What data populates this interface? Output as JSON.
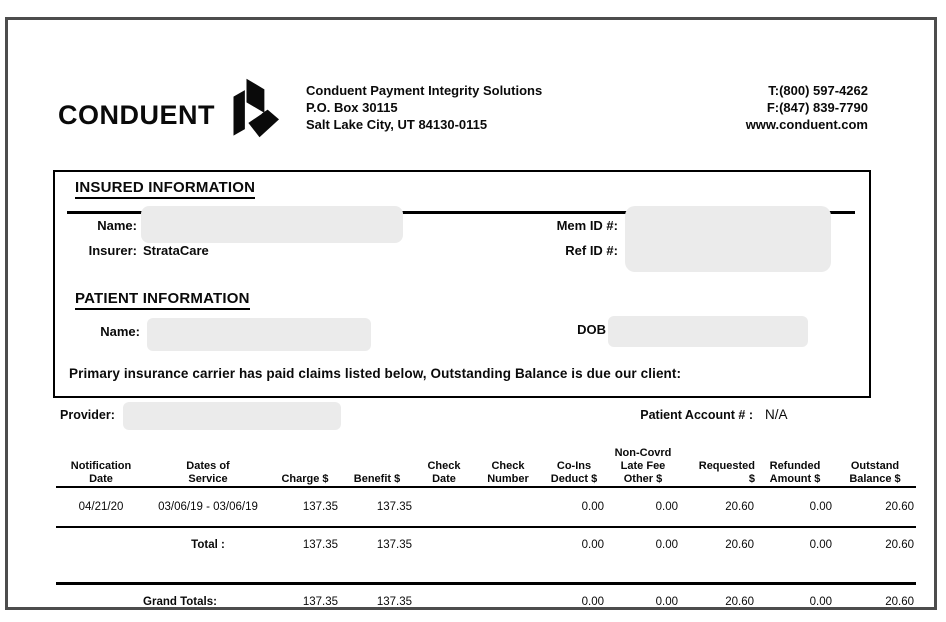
{
  "header": {
    "logo_text": "CONDUENT",
    "logo_mark": "conduent-cube-mark",
    "company_lines": [
      "Conduent Payment Integrity Solutions",
      "P.O. Box 30115",
      "Salt Lake City, UT 84130-0115"
    ],
    "contact_lines": [
      "T:(800) 597-4262",
      "F:(847) 839-7790",
      "www.conduent.com"
    ]
  },
  "insured": {
    "heading": "INSURED INFORMATION",
    "name_label": "Name:",
    "insurer_label": "Insurer:",
    "insurer_value": "StrataCare",
    "mem_id_label": "Mem ID #:",
    "ref_id_label": "Ref ID #:"
  },
  "patient": {
    "heading": "PATIENT INFORMATION",
    "name_label": "Name:",
    "dob_label": "DOB"
  },
  "notice": "Primary insurance carrier has paid claims listed below, Outstanding Balance is due our client:",
  "provider_row": {
    "provider_label": "Provider:",
    "account_label": "Patient Account # :",
    "account_value": "N/A"
  },
  "claims_table": {
    "header": [
      [
        "Notification",
        "Date"
      ],
      [
        "Dates of",
        "Service"
      ],
      [
        "Charge $"
      ],
      [
        "Benefit $"
      ],
      [
        "Check",
        "Date"
      ],
      [
        "Check",
        "Number"
      ],
      [
        "Co-Ins",
        "Deduct $"
      ],
      [
        "Non-Covrd",
        "Late Fee",
        "Other $"
      ],
      [
        "Requested",
        "$"
      ],
      [
        "Refunded",
        "Amount $"
      ],
      [
        "Outstand",
        "Balance $"
      ]
    ],
    "rows": [
      {
        "kind": "data",
        "cells": [
          "04/21/20",
          "03/06/19 - 03/06/19",
          "137.35",
          "137.35",
          "",
          "",
          "0.00",
          "0.00",
          "20.60",
          "0.00",
          "20.60"
        ]
      },
      {
        "kind": "total",
        "cells": [
          "",
          "Total :",
          "137.35",
          "137.35",
          "",
          "",
          "0.00",
          "0.00",
          "20.60",
          "0.00",
          "20.60"
        ]
      },
      {
        "kind": "grand",
        "cells": [
          "",
          "Grand Totals:",
          "137.35",
          "137.35",
          "",
          "",
          "0.00",
          "0.00",
          "20.60",
          "0.00",
          "20.60"
        ]
      }
    ]
  }
}
